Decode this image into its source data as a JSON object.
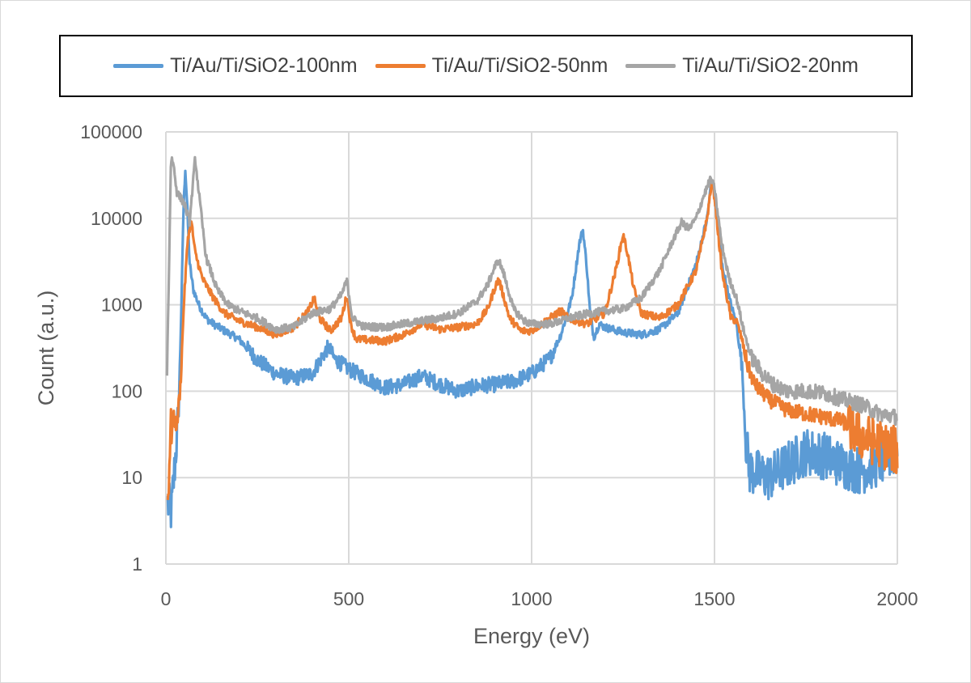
{
  "chart_data": {
    "type": "line",
    "title": "",
    "xlabel": "Energy (eV)",
    "ylabel": "Count (a.u.)",
    "xlim": [
      0,
      2000
    ],
    "ylim": [
      1,
      100000
    ],
    "y_scale": "log",
    "grid": true,
    "legend_position": "top",
    "x_ticks": [
      "0",
      "500",
      "1000",
      "1500",
      "2000"
    ],
    "y_ticks": [
      "1",
      "10",
      "100",
      "1000",
      "10000",
      "100000"
    ],
    "series": [
      {
        "name": "Ti/Au/Ti/SiO2-100nm",
        "color": "#5b9bd5",
        "points": [
          [
            5,
            5
          ],
          [
            15,
            4
          ],
          [
            25,
            15
          ],
          [
            35,
            60
          ],
          [
            42,
            800
          ],
          [
            48,
            12000
          ],
          [
            53,
            38000
          ],
          [
            58,
            15000
          ],
          [
            65,
            3000
          ],
          [
            75,
            1500
          ],
          [
            90,
            1000
          ],
          [
            110,
            700
          ],
          [
            130,
            600
          ],
          [
            160,
            500
          ],
          [
            200,
            400
          ],
          [
            250,
            230
          ],
          [
            300,
            160
          ],
          [
            350,
            140
          ],
          [
            400,
            160
          ],
          [
            430,
            260
          ],
          [
            445,
            330
          ],
          [
            460,
            240
          ],
          [
            500,
            180
          ],
          [
            550,
            140
          ],
          [
            600,
            110
          ],
          [
            650,
            120
          ],
          [
            700,
            150
          ],
          [
            750,
            120
          ],
          [
            800,
            100
          ],
          [
            850,
            115
          ],
          [
            900,
            120
          ],
          [
            950,
            130
          ],
          [
            1000,
            160
          ],
          [
            1050,
            240
          ],
          [
            1080,
            450
          ],
          [
            1110,
            1200
          ],
          [
            1130,
            5000
          ],
          [
            1140,
            7500
          ],
          [
            1150,
            3000
          ],
          [
            1160,
            800
          ],
          [
            1170,
            420
          ],
          [
            1185,
            600
          ],
          [
            1200,
            550
          ],
          [
            1250,
            480
          ],
          [
            1300,
            450
          ],
          [
            1350,
            520
          ],
          [
            1400,
            800
          ],
          [
            1450,
            3000
          ],
          [
            1480,
            10000
          ],
          [
            1492,
            28000
          ],
          [
            1500,
            20000
          ],
          [
            1520,
            3000
          ],
          [
            1540,
            1200
          ],
          [
            1560,
            600
          ],
          [
            1575,
            200
          ],
          [
            1585,
            30
          ],
          [
            1595,
            12
          ],
          [
            1650,
            10
          ],
          [
            1700,
            14
          ],
          [
            1750,
            20
          ],
          [
            1800,
            18
          ],
          [
            1850,
            14
          ],
          [
            1900,
            12
          ],
          [
            1950,
            15
          ],
          [
            2000,
            20
          ]
        ]
      },
      {
        "name": "Ti/Au/Ti/SiO2-50nm",
        "color": "#ed7d31",
        "points": [
          [
            5,
            5
          ],
          [
            12,
            30
          ],
          [
            20,
            50
          ],
          [
            30,
            40
          ],
          [
            40,
            120
          ],
          [
            50,
            1200
          ],
          [
            60,
            6000
          ],
          [
            70,
            9000
          ],
          [
            80,
            4000
          ],
          [
            100,
            2000
          ],
          [
            130,
            1200
          ],
          [
            160,
            800
          ],
          [
            200,
            650
          ],
          [
            250,
            550
          ],
          [
            300,
            450
          ],
          [
            350,
            550
          ],
          [
            390,
            850
          ],
          [
            405,
            1200
          ],
          [
            420,
            700
          ],
          [
            450,
            500
          ],
          [
            480,
            700
          ],
          [
            495,
            1300
          ],
          [
            505,
            600
          ],
          [
            520,
            400
          ],
          [
            600,
            380
          ],
          [
            650,
            450
          ],
          [
            700,
            600
          ],
          [
            750,
            520
          ],
          [
            800,
            550
          ],
          [
            850,
            600
          ],
          [
            880,
            900
          ],
          [
            900,
            1600
          ],
          [
            910,
            2000
          ],
          [
            920,
            1400
          ],
          [
            940,
            700
          ],
          [
            970,
            500
          ],
          [
            1000,
            500
          ],
          [
            1050,
            700
          ],
          [
            1080,
            850
          ],
          [
            1100,
            700
          ],
          [
            1150,
            600
          ],
          [
            1200,
            800
          ],
          [
            1230,
            2500
          ],
          [
            1250,
            6500
          ],
          [
            1262,
            4000
          ],
          [
            1280,
            1500
          ],
          [
            1300,
            800
          ],
          [
            1350,
            700
          ],
          [
            1400,
            1000
          ],
          [
            1450,
            2500
          ],
          [
            1480,
            10000
          ],
          [
            1492,
            26000
          ],
          [
            1500,
            18000
          ],
          [
            1520,
            2500
          ],
          [
            1545,
            700
          ],
          [
            1560,
            650
          ],
          [
            1575,
            400
          ],
          [
            1590,
            200
          ],
          [
            1610,
            120
          ],
          [
            1650,
            80
          ],
          [
            1700,
            60
          ],
          [
            1750,
            55
          ],
          [
            1800,
            50
          ],
          [
            1850,
            45
          ],
          [
            1900,
            30
          ],
          [
            1950,
            25
          ],
          [
            2000,
            20
          ]
        ]
      },
      {
        "name": "Ti/Au/Ti/SiO2-20nm",
        "color": "#a5a5a5",
        "points": [
          [
            3,
            160
          ],
          [
            8,
            2000
          ],
          [
            14,
            50000
          ],
          [
            20,
            45000
          ],
          [
            30,
            20000
          ],
          [
            50,
            15000
          ],
          [
            65,
            9000
          ],
          [
            80,
            50000
          ],
          [
            90,
            20000
          ],
          [
            110,
            3500
          ],
          [
            140,
            1500
          ],
          [
            170,
            1000
          ],
          [
            200,
            850
          ],
          [
            250,
            700
          ],
          [
            300,
            520
          ],
          [
            350,
            550
          ],
          [
            400,
            800
          ],
          [
            450,
            900
          ],
          [
            480,
            1300
          ],
          [
            495,
            1900
          ],
          [
            510,
            700
          ],
          [
            540,
            560
          ],
          [
            600,
            550
          ],
          [
            650,
            600
          ],
          [
            700,
            650
          ],
          [
            750,
            700
          ],
          [
            800,
            800
          ],
          [
            850,
            1100
          ],
          [
            880,
            1700
          ],
          [
            900,
            2800
          ],
          [
            910,
            3300
          ],
          [
            925,
            2200
          ],
          [
            950,
            900
          ],
          [
            980,
            650
          ],
          [
            1000,
            600
          ],
          [
            1050,
            600
          ],
          [
            1080,
            650
          ],
          [
            1100,
            700
          ],
          [
            1150,
            780
          ],
          [
            1200,
            850
          ],
          [
            1250,
            900
          ],
          [
            1300,
            1200
          ],
          [
            1350,
            2500
          ],
          [
            1390,
            6000
          ],
          [
            1410,
            9000
          ],
          [
            1430,
            7500
          ],
          [
            1450,
            10000
          ],
          [
            1470,
            18000
          ],
          [
            1490,
            29000
          ],
          [
            1500,
            22000
          ],
          [
            1520,
            5000
          ],
          [
            1540,
            2000
          ],
          [
            1560,
            1200
          ],
          [
            1580,
            500
          ],
          [
            1600,
            250
          ],
          [
            1630,
            160
          ],
          [
            1660,
            120
          ],
          [
            1700,
            100
          ],
          [
            1750,
            100
          ],
          [
            1800,
            95
          ],
          [
            1850,
            80
          ],
          [
            1900,
            70
          ],
          [
            1950,
            55
          ],
          [
            2000,
            50
          ]
        ]
      }
    ]
  }
}
